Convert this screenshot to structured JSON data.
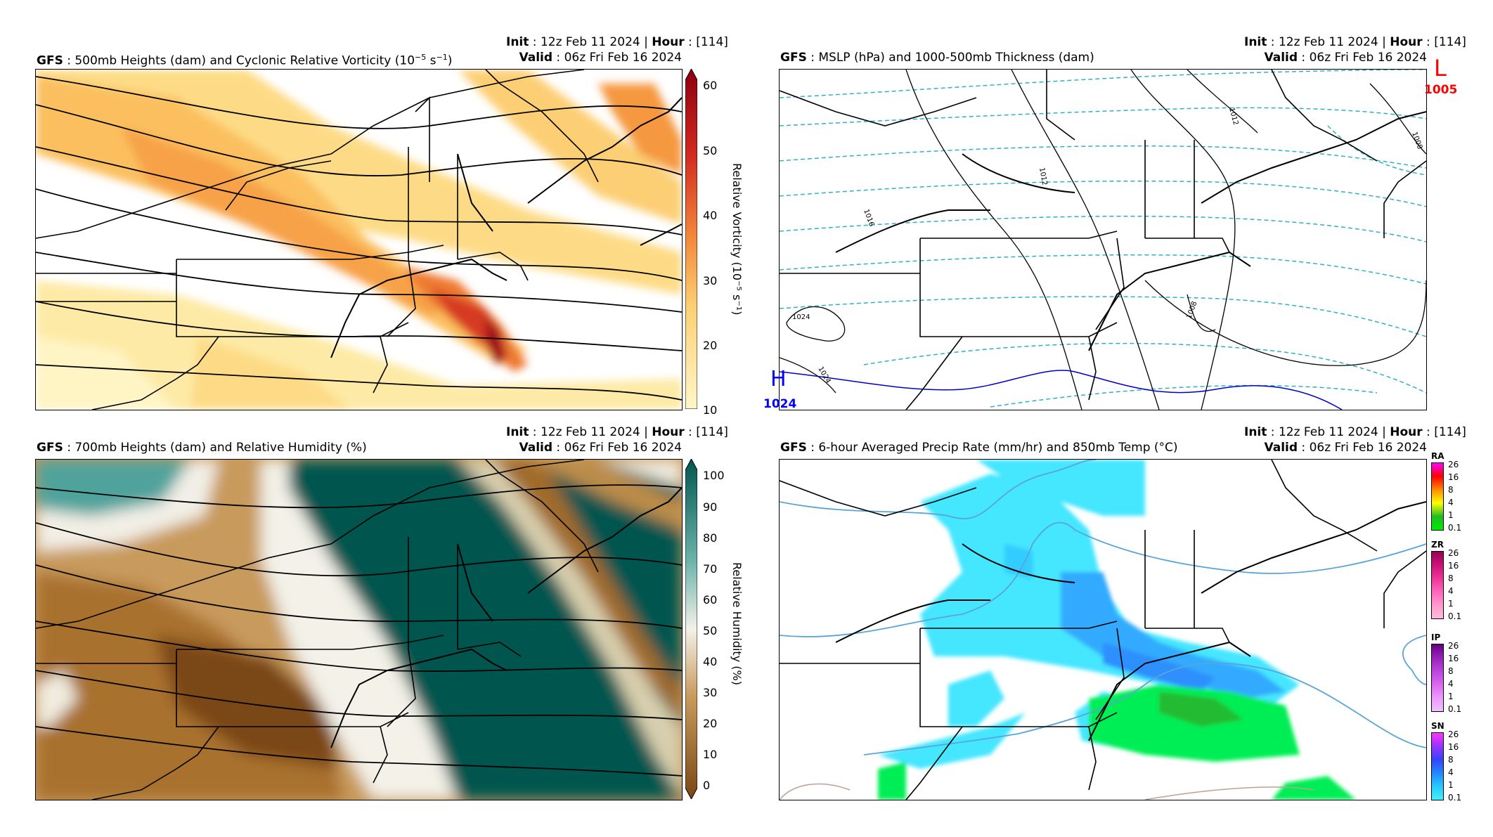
{
  "panels": [
    {
      "model": "GFS",
      "title": "500mb Heights (dam) and Cyclonic Relative Vorticity (10",
      "title_sup": "−5",
      "title_mid": " s",
      "title_sup2": "−1",
      "title_end": ")",
      "init_label": "Init",
      "init_value": "12z Feb 11 2024",
      "hour_label": "Hour",
      "hour_value": "[114]",
      "valid_label": "Valid",
      "valid_value": "06z Fri Feb 16 2024",
      "colorbar_label": "Relative Vorticity (10⁻⁵ s⁻¹)",
      "colorbar_ticks": [
        "60",
        "50",
        "40",
        "30",
        "20",
        "10"
      ]
    },
    {
      "model": "GFS",
      "title": "MSLP (hPa) and 1000-500mb Thickness (dam)",
      "init_label": "Init",
      "init_value": "12z Feb 11 2024",
      "hour_label": "Hour",
      "hour_value": "[114]",
      "valid_label": "Valid",
      "valid_value": "06z Fri Feb 16 2024",
      "low_symbol": "L",
      "low_value": "1005",
      "high_symbol": "H",
      "high_value": "1024",
      "contour_labels": [
        "1024",
        "1024",
        "1016",
        "1012",
        "1012",
        "1008",
        "1008"
      ]
    },
    {
      "model": "GFS",
      "title": "700mb Heights (dam) and Relative Humidity (%)",
      "init_label": "Init",
      "init_value": "12z Feb 11 2024",
      "hour_label": "Hour",
      "hour_value": "[114]",
      "valid_label": "Valid",
      "valid_value": "06z Fri Feb 16 2024",
      "colorbar_label": "Relative Humidity (%)",
      "colorbar_ticks": [
        "100",
        "90",
        "80",
        "70",
        "60",
        "50",
        "40",
        "30",
        "20",
        "10",
        "0"
      ]
    },
    {
      "model": "GFS",
      "title": "6-hour Averaged Precip Rate (mm/hr) and 850mb Temp (°C)",
      "init_label": "Init",
      "init_value": "12z Feb 11 2024",
      "hour_label": "Hour",
      "hour_value": "[114]",
      "valid_label": "Valid",
      "valid_value": "06z Fri Feb 16 2024",
      "ptype_bars": [
        {
          "code": "RA",
          "ticks": [
            "26",
            "16",
            "8",
            "4",
            "1",
            "0.1"
          ],
          "colors": [
            "#ff00ff",
            "#ff0000",
            "#ff8c00",
            "#ffff00",
            "#22bb22",
            "#00ee00"
          ]
        },
        {
          "code": "ZR",
          "ticks": [
            "26",
            "16",
            "8",
            "4",
            "1",
            "0.1"
          ],
          "colors": [
            "#990055",
            "#cc1177",
            "#ee3399",
            "#ff66bb",
            "#ff99cc",
            "#ffbbdd"
          ]
        },
        {
          "code": "IP",
          "ticks": [
            "26",
            "16",
            "8",
            "4",
            "1",
            "0.1"
          ],
          "colors": [
            "#660088",
            "#9922bb",
            "#bb44dd",
            "#dd66ee",
            "#ee99ff",
            "#f0c0ff"
          ]
        },
        {
          "code": "SN",
          "ticks": [
            "26",
            "16",
            "8",
            "4",
            "1",
            "0.1"
          ],
          "colors": [
            "#ff33ff",
            "#9933ff",
            "#3344ff",
            "#2288ff",
            "#22ccff",
            "#44eeff"
          ]
        }
      ]
    }
  ],
  "colors": {
    "vort_max": "#8b0010",
    "vort_mid": "#f38a3c",
    "vort_min": "#fff6c8",
    "rh_dry": "#7a4613",
    "rh_wet": "#00574f",
    "thickness": "#31b0c5",
    "low": "#ff0000",
    "high": "#0000ff",
    "snow": "#33ccff",
    "rain": "#00dd33"
  }
}
